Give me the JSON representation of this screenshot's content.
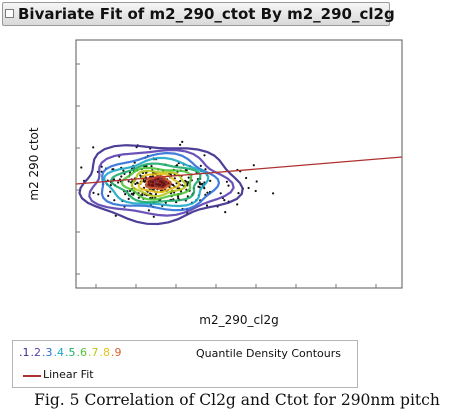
{
  "window": {
    "title": "Bivariate Fit of m2_290_ctot By m2_290_cl2g"
  },
  "chart_data": {
    "type": "scatter",
    "title": "Bivariate Fit of m2_290_ctot By m2_290_cl2g",
    "xlabel": "m2_290_cl2g",
    "ylabel": "m2  290  ctot",
    "grid": false,
    "overlays": [
      "quantile density contours",
      "linear fit"
    ],
    "legend": {
      "position": "bottom",
      "contour_levels": [
        {
          "label": ".1",
          "color": "#3a2a8c"
        },
        {
          "label": ".2",
          "color": "#5a3fb0"
        },
        {
          "label": ".3",
          "color": "#2f6fd6"
        },
        {
          "label": ".4",
          "color": "#1ea7c8"
        },
        {
          "label": ".5",
          "color": "#1cab6a"
        },
        {
          "label": ".6",
          "color": "#4fc43a"
        },
        {
          "label": ".7",
          "color": "#b8c81c"
        },
        {
          "label": ".8",
          "color": "#e7c21b"
        },
        {
          "label": ".9",
          "color": "#d6602a"
        }
      ],
      "contour_title": "Quantile Density Contours",
      "fit_label": "Linear Fit",
      "fit_color": "#b03030"
    }
  },
  "caption": "Fig. 5 Correlation of Cl2g and Ctot for 290nm pitch"
}
